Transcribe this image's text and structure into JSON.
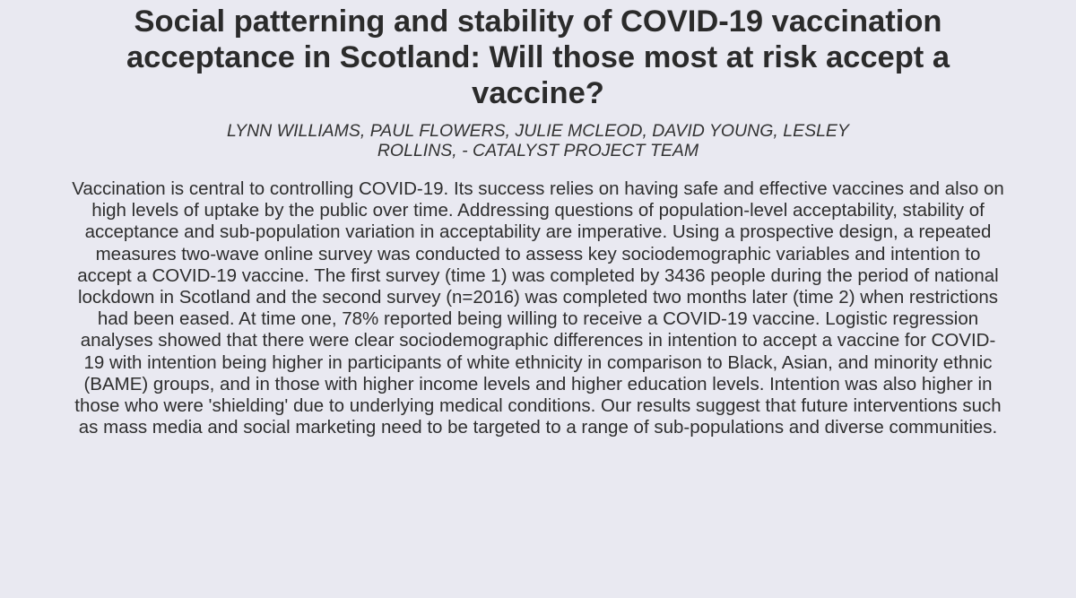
{
  "paper": {
    "title": "Social patterning and stability of COVID-19 vaccination acceptance in Scotland: Will those most at risk accept a vaccine?",
    "authors": "LYNN WILLIAMS, PAUL FLOWERS, JULIE MCLEOD, DAVID YOUNG, LESLEY ROLLINS, - CATALYST PROJECT TEAM",
    "abstract": "Vaccination is central to controlling COVID-19. Its success relies on having safe and effective vaccines and also on high levels of uptake by the public over time. Addressing questions of population-level acceptability, stability of acceptance and sub-population variation in acceptability are imperative. Using a prospective design, a repeated measures two-wave online survey was conducted to assess key sociodemographic variables and intention to accept a COVID-19 vaccine. The first survey (time 1) was completed by 3436 people during the period of national lockdown in Scotland and the second survey (n=2016) was completed two months later (time 2) when restrictions had been eased. At time one, 78% reported being willing to receive a COVID-19 vaccine. Logistic regression analyses showed that there were clear sociodemographic differences in intention to accept a vaccine for COVID-19 with intention being higher in participants of white ethnicity in comparison to Black, Asian, and minority ethnic (BAME) groups, and in those with higher income levels and higher education levels. Intention was also higher in those who were 'shielding' due to underlying medical conditions. Our results suggest that future interventions such as mass media and social marketing need to be targeted to a range of sub-populations and diverse communities."
  },
  "colors": {
    "background": "#e9e9f1",
    "text": "#2a2a2a"
  }
}
